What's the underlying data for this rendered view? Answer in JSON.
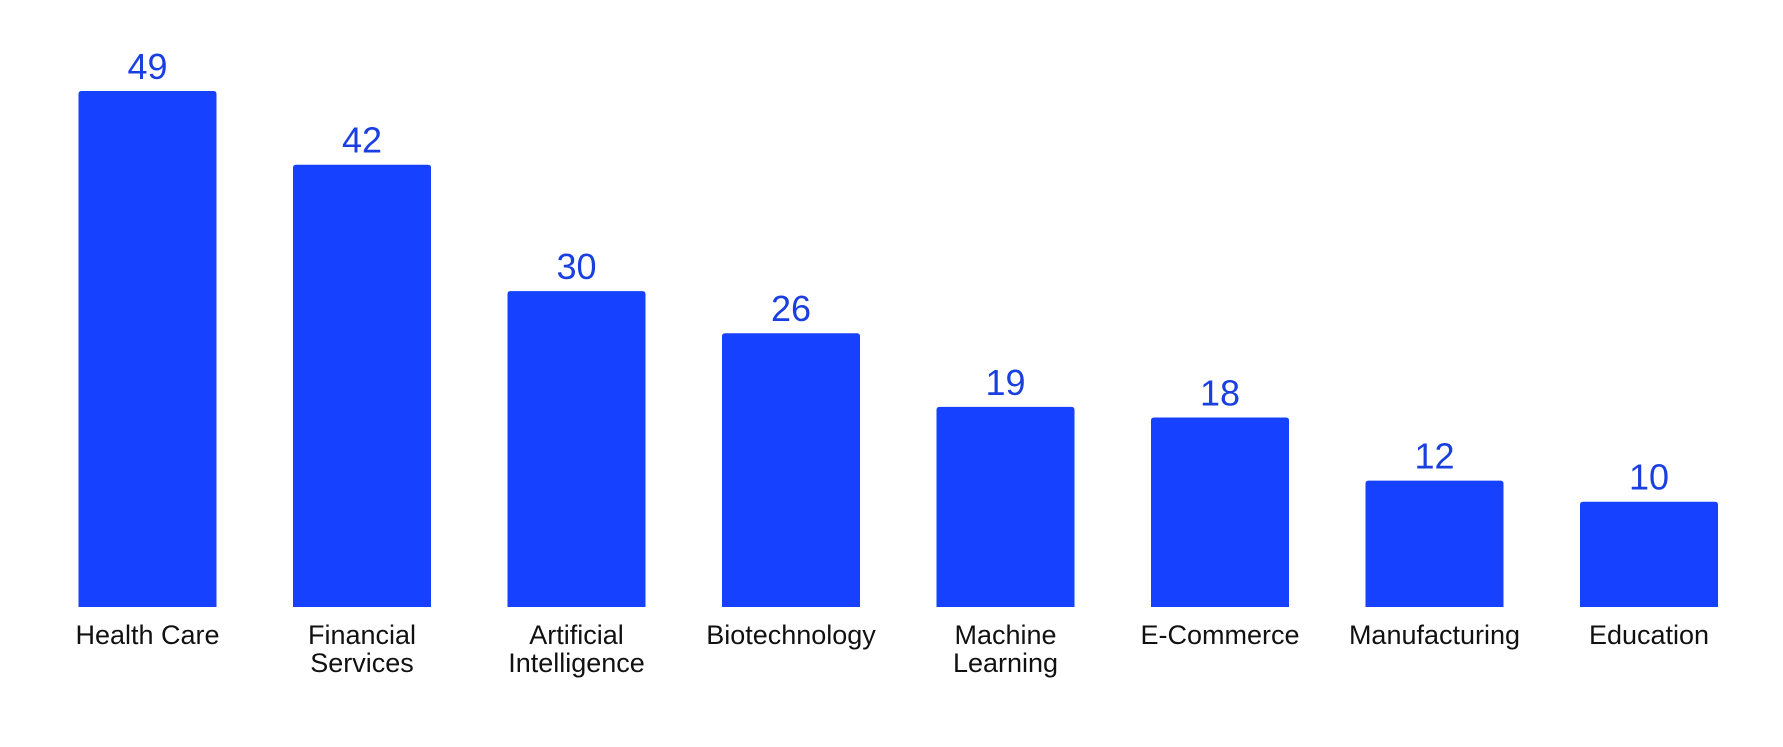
{
  "colors": {
    "bar": "#1641ff",
    "value_label": "#1a3fe0",
    "category_label": "#111111",
    "background": "#ffffff"
  },
  "chart_data": {
    "type": "bar",
    "title": "",
    "xlabel": "",
    "ylabel": "",
    "categories": [
      "Health Care",
      "Financial Services",
      "Artificial Intelligence",
      "Biotechnology",
      "Machine Learning",
      "E-Commerce",
      "Manufacturing",
      "Education"
    ],
    "values": [
      49,
      42,
      30,
      26,
      19,
      18,
      12,
      10
    ],
    "ylim": [
      0,
      49
    ],
    "grid": false,
    "legend": "none",
    "data_labels": true
  }
}
